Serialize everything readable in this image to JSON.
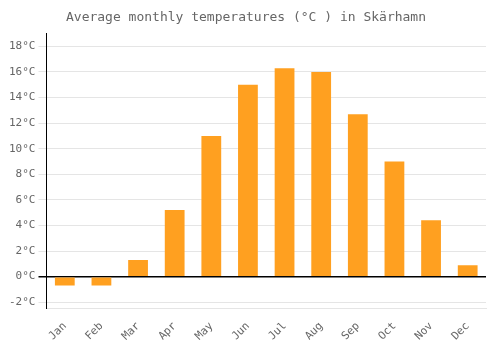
{
  "chart_data": {
    "type": "bar",
    "title": "Average monthly temperatures (°C ) in Skärhamn",
    "categories": [
      "Jan",
      "Feb",
      "Mar",
      "Apr",
      "May",
      "Jun",
      "Jul",
      "Aug",
      "Sep",
      "Oct",
      "Nov",
      "Dec"
    ],
    "values": [
      -0.7,
      -0.7,
      1.3,
      5.2,
      11.0,
      15.0,
      16.3,
      16.0,
      12.7,
      9.0,
      4.4,
      0.9
    ],
    "color": "#FFA020",
    "ylim": [
      -2.5,
      19.0
    ],
    "yticks": [
      {
        "value": -2,
        "label": "-2°C"
      },
      {
        "value": 0,
        "label": "0°C"
      },
      {
        "value": 2,
        "label": "2°C"
      },
      {
        "value": 4,
        "label": "4°C"
      },
      {
        "value": 6,
        "label": "6°C"
      },
      {
        "value": 8,
        "label": "8°C"
      },
      {
        "value": 10,
        "label": "10°C"
      },
      {
        "value": 12,
        "label": "12°C"
      },
      {
        "value": 14,
        "label": "14°C"
      },
      {
        "value": 16,
        "label": "16°C"
      },
      {
        "value": 18,
        "label": "18°C"
      }
    ],
    "grid": true
  }
}
